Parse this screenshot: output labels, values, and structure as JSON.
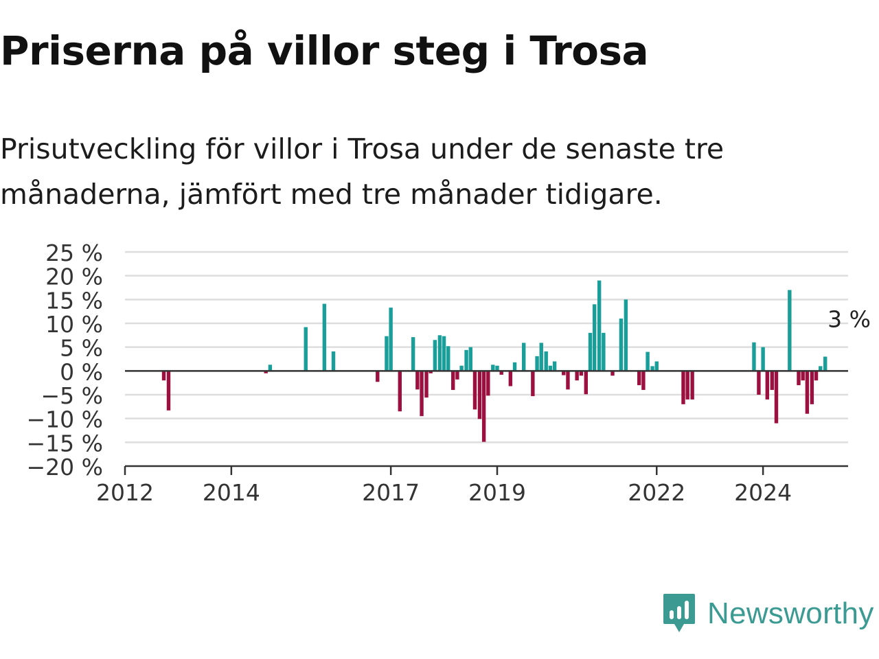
{
  "title": "Priserna på villor steg i Trosa",
  "subtitle": "Prisutveckling för villor i Trosa under de senaste tre månaderna, jämfört med tre månader tidigare.",
  "brand": {
    "name": "Newsworthy"
  },
  "colors": {
    "positive": "#1a9e99",
    "negative": "#9c1040",
    "grid": "#dddddd",
    "axis": "#333333"
  },
  "chart_data": {
    "type": "bar",
    "title": "",
    "xlabel": "",
    "ylabel": "",
    "ylim": [
      -20,
      25
    ],
    "y_ticks": [
      25,
      20,
      15,
      10,
      5,
      0,
      -5,
      -10,
      -15,
      -20
    ],
    "y_tick_labels": [
      "25 %",
      "20 %",
      "15 %",
      "10 %",
      "5 %",
      "0 %",
      "−5 %",
      "−10 %",
      "−15 %",
      "−20 %"
    ],
    "x_ticks": [
      {
        "value": 2012.0,
        "label": "2012"
      },
      {
        "value": 2014.0,
        "label": "2014"
      },
      {
        "value": 2017.0,
        "label": "2017"
      },
      {
        "value": 2019.0,
        "label": "2019"
      },
      {
        "value": 2022.0,
        "label": "2022"
      },
      {
        "value": 2024.0,
        "label": "2024"
      }
    ],
    "xlim": [
      2012.0,
      2025.6
    ],
    "grid": true,
    "annotation": {
      "text": "3 %",
      "x": 2025.0,
      "y": 3
    },
    "points": [
      {
        "x": 2012.73,
        "y": -2
      },
      {
        "x": 2012.82,
        "y": -8.3
      },
      {
        "x": 2014.65,
        "y": -0.5
      },
      {
        "x": 2014.73,
        "y": 1.3
      },
      {
        "x": 2015.4,
        "y": 9.2
      },
      {
        "x": 2015.75,
        "y": 14.1
      },
      {
        "x": 2015.92,
        "y": 4.1
      },
      {
        "x": 2016.75,
        "y": -2.3
      },
      {
        "x": 2016.92,
        "y": 7.3
      },
      {
        "x": 2017.0,
        "y": 13.3
      },
      {
        "x": 2017.17,
        "y": -8.5
      },
      {
        "x": 2017.42,
        "y": 7.1
      },
      {
        "x": 2017.5,
        "y": -3.9
      },
      {
        "x": 2017.58,
        "y": -9.5
      },
      {
        "x": 2017.67,
        "y": -5.6
      },
      {
        "x": 2017.75,
        "y": -0.5
      },
      {
        "x": 2017.83,
        "y": 6.5
      },
      {
        "x": 2017.92,
        "y": 7.5
      },
      {
        "x": 2018.0,
        "y": 7.3
      },
      {
        "x": 2018.08,
        "y": 5.2
      },
      {
        "x": 2018.17,
        "y": -4
      },
      {
        "x": 2018.25,
        "y": -1.8
      },
      {
        "x": 2018.33,
        "y": 1.1
      },
      {
        "x": 2018.42,
        "y": 4.4
      },
      {
        "x": 2018.5,
        "y": 5.0
      },
      {
        "x": 2018.58,
        "y": -8.1
      },
      {
        "x": 2018.67,
        "y": -10.1
      },
      {
        "x": 2018.75,
        "y": -14.9
      },
      {
        "x": 2018.83,
        "y": -5.2
      },
      {
        "x": 2018.92,
        "y": 1.3
      },
      {
        "x": 2019.0,
        "y": 1.1
      },
      {
        "x": 2019.08,
        "y": -0.8
      },
      {
        "x": 2019.25,
        "y": -3.2
      },
      {
        "x": 2019.33,
        "y": 1.8
      },
      {
        "x": 2019.5,
        "y": 5.9
      },
      {
        "x": 2019.67,
        "y": -5.3
      },
      {
        "x": 2019.75,
        "y": 3.1
      },
      {
        "x": 2019.83,
        "y": 5.9
      },
      {
        "x": 2019.92,
        "y": 4.1
      },
      {
        "x": 2020.0,
        "y": 1.1
      },
      {
        "x": 2020.08,
        "y": 2.0
      },
      {
        "x": 2020.25,
        "y": -0.9
      },
      {
        "x": 2020.33,
        "y": -3.9
      },
      {
        "x": 2020.5,
        "y": -2.0
      },
      {
        "x": 2020.58,
        "y": -1.0
      },
      {
        "x": 2020.67,
        "y": -4.9
      },
      {
        "x": 2020.75,
        "y": 8.0
      },
      {
        "x": 2020.83,
        "y": 14.0
      },
      {
        "x": 2020.92,
        "y": 19.0
      },
      {
        "x": 2021.0,
        "y": 8.0
      },
      {
        "x": 2021.17,
        "y": -1.0
      },
      {
        "x": 2021.33,
        "y": 11.0
      },
      {
        "x": 2021.42,
        "y": 15.0
      },
      {
        "x": 2021.67,
        "y": -3.0
      },
      {
        "x": 2021.75,
        "y": -4.0
      },
      {
        "x": 2021.83,
        "y": 4.0
      },
      {
        "x": 2021.92,
        "y": 1.0
      },
      {
        "x": 2022.0,
        "y": 2.0
      },
      {
        "x": 2022.5,
        "y": -7.0
      },
      {
        "x": 2022.58,
        "y": -6.0
      },
      {
        "x": 2022.67,
        "y": -6.0
      },
      {
        "x": 2023.83,
        "y": 6.0
      },
      {
        "x": 2023.92,
        "y": -5.0
      },
      {
        "x": 2024.0,
        "y": 5.0
      },
      {
        "x": 2024.08,
        "y": -6.0
      },
      {
        "x": 2024.17,
        "y": -4.0
      },
      {
        "x": 2024.25,
        "y": -11.0
      },
      {
        "x": 2024.5,
        "y": 17.0
      },
      {
        "x": 2024.67,
        "y": -3.0
      },
      {
        "x": 2024.75,
        "y": -2.0
      },
      {
        "x": 2024.83,
        "y": -9.0
      },
      {
        "x": 2024.92,
        "y": -7.0
      },
      {
        "x": 2025.0,
        "y": -2.0
      },
      {
        "x": 2025.08,
        "y": 1.0
      },
      {
        "x": 2025.17,
        "y": 3.0
      }
    ]
  }
}
